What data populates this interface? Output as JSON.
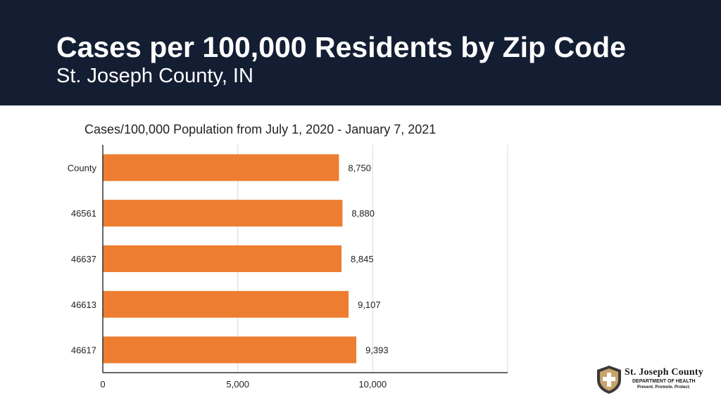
{
  "header": {
    "title": "Cases per 100,000 Residents by Zip Code",
    "subtitle": "St. Joseph County, IN"
  },
  "colors": {
    "header_bg": "#141e33",
    "bar": "#ed7d31",
    "grid": "#d9d9d9",
    "axis": "#333333"
  },
  "chart_data": {
    "type": "bar",
    "orientation": "horizontal",
    "title": "Cases/100,000 Population from July 1, 2020 - January 7, 2021",
    "categories": [
      "County",
      "46561",
      "46637",
      "46613",
      "46617"
    ],
    "values": [
      8750,
      8880,
      8845,
      9107,
      9393
    ],
    "value_labels": [
      "8,750",
      "8,880",
      "8,845",
      "9,107",
      "9,393"
    ],
    "xlim": [
      0,
      15000
    ],
    "x_ticks": [
      0,
      5000,
      10000
    ],
    "x_tick_labels": [
      "0",
      "5,000",
      "10,000"
    ],
    "grid": true,
    "legend": "none"
  },
  "logo": {
    "icon": "shield-cross-icon",
    "line1": "St. Joseph County",
    "line2": "DEPARTMENT OF HEALTH",
    "line3": "Prevent. Promote. Protect."
  }
}
